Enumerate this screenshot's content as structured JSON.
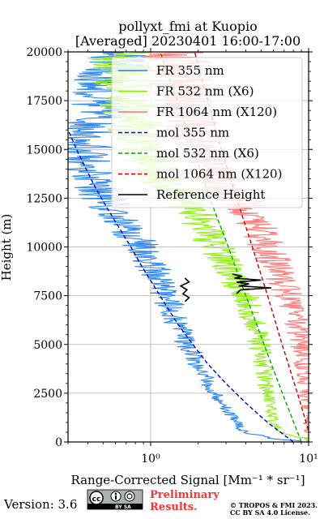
{
  "chart_data": {
    "type": "line",
    "title_line1": "pollyxt_fmi at Kuopio",
    "title_line2": "[Averaged] 20230401 16:00-17:00",
    "xlabel": "Range-Corrected Signal [Mm⁻¹ * sr⁻¹]",
    "ylabel": "Height (m)",
    "xscale": "log",
    "xlim": [
      0.3,
      10
    ],
    "ylim": [
      0,
      20000
    ],
    "grid": true,
    "legend_position": "top-right",
    "x_ticks": [
      {
        "value": 1,
        "label": "10⁰"
      },
      {
        "value": 10,
        "label": "10¹"
      }
    ],
    "y_ticks": [
      {
        "value": 0,
        "label": "0"
      },
      {
        "value": 2500,
        "label": "2500"
      },
      {
        "value": 5000,
        "label": "5000"
      },
      {
        "value": 7500,
        "label": "7500"
      },
      {
        "value": 10000,
        "label": "10000"
      },
      {
        "value": 12500,
        "label": "12500"
      },
      {
        "value": 15000,
        "label": "15000"
      },
      {
        "value": 17500,
        "label": "17500"
      },
      {
        "value": 20000,
        "label": "20000"
      }
    ],
    "series": [
      {
        "name": "FR 355 nm",
        "color": "#1e7cf0",
        "style": "solid",
        "kind": "noisy",
        "points": [
          [
            9.5,
            0
          ],
          [
            5.8,
            200
          ],
          [
            3.9,
            500
          ],
          [
            3.5,
            1000
          ],
          [
            3.1,
            1500
          ],
          [
            2.8,
            2000
          ],
          [
            2.55,
            2500
          ],
          [
            2.3,
            3000
          ],
          [
            2.15,
            3500
          ],
          [
            2.0,
            4000
          ],
          [
            1.85,
            4500
          ],
          [
            1.7,
            5000
          ],
          [
            1.6,
            5500
          ],
          [
            1.5,
            6000
          ],
          [
            1.4,
            6500
          ],
          [
            1.32,
            7000
          ],
          [
            1.25,
            7500
          ],
          [
            1.18,
            8000
          ],
          [
            1.1,
            8500
          ],
          [
            1.03,
            9000
          ],
          [
            0.95,
            9500
          ],
          [
            0.88,
            10000
          ],
          [
            0.8,
            10500
          ],
          [
            0.72,
            11000
          ],
          [
            0.65,
            11500
          ],
          [
            0.55,
            12000
          ],
          [
            0.5,
            12500
          ],
          [
            0.45,
            13000
          ],
          [
            0.42,
            13500
          ],
          [
            0.4,
            14000
          ],
          [
            0.38,
            15000
          ],
          [
            0.4,
            16000
          ],
          [
            0.45,
            17000
          ],
          [
            0.5,
            18000
          ],
          [
            0.55,
            19000
          ],
          [
            0.6,
            20000
          ]
        ]
      },
      {
        "name": "FR 532 nm (X6)",
        "color": "#88ee00",
        "style": "solid",
        "kind": "noisy",
        "points": [
          [
            10,
            0
          ],
          [
            9.5,
            200
          ],
          [
            6.5,
            500
          ],
          [
            6.0,
            1000
          ],
          [
            5.8,
            1500
          ],
          [
            5.6,
            2000
          ],
          [
            5.5,
            2500
          ],
          [
            5.3,
            3000
          ],
          [
            5.2,
            3500
          ],
          [
            5.1,
            4000
          ],
          [
            5.0,
            4500
          ],
          [
            4.9,
            5000
          ],
          [
            4.8,
            5500
          ],
          [
            4.6,
            6000
          ],
          [
            4.4,
            6500
          ],
          [
            4.1,
            7000
          ],
          [
            3.9,
            7500
          ],
          [
            3.6,
            8000
          ],
          [
            3.4,
            8500
          ],
          [
            3.1,
            9000
          ],
          [
            2.9,
            9500
          ],
          [
            2.6,
            10000
          ],
          [
            2.4,
            10500
          ],
          [
            2.2,
            11000
          ],
          [
            2.0,
            11500
          ],
          [
            1.8,
            12000
          ],
          [
            1.6,
            12500
          ],
          [
            1.4,
            13000
          ],
          [
            1.2,
            13500
          ],
          [
            1.05,
            14000
          ],
          [
            0.9,
            15000
          ],
          [
            0.8,
            16000
          ],
          [
            0.75,
            17000
          ],
          [
            0.7,
            18000
          ],
          [
            0.68,
            19000
          ],
          [
            0.65,
            20000
          ]
        ]
      },
      {
        "name": "FR 1064 nm (X120)",
        "color": "#ff7070",
        "style": "solid",
        "kind": "noisy",
        "points": [
          [
            10,
            0
          ],
          [
            10,
            1000
          ],
          [
            9.8,
            2000
          ],
          [
            9.6,
            3000
          ],
          [
            9.3,
            4000
          ],
          [
            9.0,
            5000
          ],
          [
            8.5,
            6000
          ],
          [
            7.8,
            7000
          ],
          [
            7.0,
            8000
          ],
          [
            6.2,
            9000
          ],
          [
            5.5,
            10000
          ],
          [
            4.8,
            11000
          ],
          [
            4.0,
            12000
          ],
          [
            3.4,
            12500
          ],
          [
            3.0,
            13000
          ],
          [
            2.5,
            14000
          ],
          [
            2.0,
            15000
          ],
          [
            1.8,
            16000
          ],
          [
            1.7,
            17000
          ],
          [
            1.6,
            18000
          ],
          [
            1.5,
            19000
          ],
          [
            1.4,
            20000
          ]
        ]
      },
      {
        "name": "mol 355 nm",
        "color": "#0000cc",
        "style": "dashed",
        "kind": "smooth",
        "points": [
          [
            8.0,
            0
          ],
          [
            5.5,
            1000
          ],
          [
            4.0,
            2000
          ],
          [
            3.0,
            3000
          ],
          [
            2.3,
            4000
          ],
          [
            1.85,
            5000
          ],
          [
            1.5,
            6000
          ],
          [
            1.25,
            7000
          ],
          [
            1.05,
            8000
          ],
          [
            0.88,
            9000
          ],
          [
            0.75,
            10000
          ],
          [
            0.63,
            11000
          ],
          [
            0.53,
            12000
          ],
          [
            0.45,
            13000
          ],
          [
            0.39,
            14000
          ],
          [
            0.34,
            15000
          ],
          [
            0.3,
            16000
          ]
        ]
      },
      {
        "name": "mol 532 nm (X6)",
        "color": "#00aa00",
        "style": "dashed",
        "kind": "smooth",
        "points": [
          [
            9.0,
            0
          ],
          [
            7.2,
            2000
          ],
          [
            5.8,
            4000
          ],
          [
            4.7,
            6000
          ],
          [
            3.8,
            8000
          ],
          [
            3.1,
            10000
          ],
          [
            2.5,
            12000
          ],
          [
            2.05,
            14000
          ],
          [
            1.7,
            16000
          ],
          [
            1.4,
            18000
          ],
          [
            1.15,
            20000
          ]
        ]
      },
      {
        "name": "mol 1064 nm (X120)",
        "color": "#cc0000",
        "style": "dashed",
        "kind": "smooth",
        "points": [
          [
            10.5,
            0
          ],
          [
            8.5,
            2500
          ],
          [
            6.8,
            5000
          ],
          [
            5.5,
            7500
          ],
          [
            4.4,
            10000
          ],
          [
            3.5,
            12500
          ],
          [
            2.8,
            15000
          ],
          [
            2.3,
            17500
          ],
          [
            1.9,
            20000
          ]
        ]
      },
      {
        "name": "Reference Height",
        "color": "#000000",
        "style": "solid",
        "kind": "jagged",
        "segments": [
          {
            "points": [
              [
                1.65,
                7200
              ],
              [
                1.75,
                7400
              ],
              [
                1.6,
                7600
              ],
              [
                1.7,
                7800
              ],
              [
                1.55,
                8000
              ],
              [
                1.75,
                8200
              ],
              [
                1.65,
                8400
              ]
            ]
          },
          {
            "points": [
              [
                3.5,
                7600
              ],
              [
                3.7,
                7800
              ],
              [
                5.8,
                7900
              ],
              [
                3.6,
                8000
              ],
              [
                4.2,
                8100
              ],
              [
                3.5,
                8200
              ],
              [
                5.0,
                8300
              ],
              [
                3.4,
                8400
              ],
              [
                3.8,
                8500
              ],
              [
                3.3,
                8600
              ]
            ]
          }
        ]
      }
    ]
  },
  "footer": {
    "version": "Version: 3.6",
    "prelim_line1": "Preliminary",
    "prelim_line2": "Results.",
    "copyright_line1": "© TROPOS & FMI 2023.",
    "copyright_line2": "CC BY SA 4.0 License.",
    "badge_text": "BY   SA"
  }
}
